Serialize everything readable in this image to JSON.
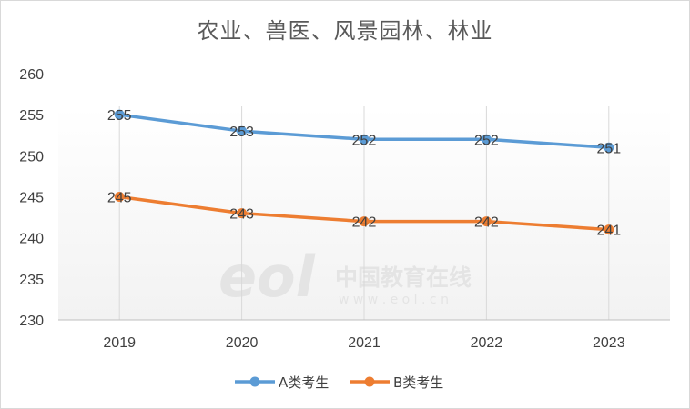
{
  "chart_data": {
    "type": "line",
    "title": "农业、兽医、风景园林、林业",
    "categories": [
      "2019",
      "2020",
      "2021",
      "2022",
      "2023"
    ],
    "series": [
      {
        "name": "A类考生",
        "values": [
          255,
          253,
          252,
          252,
          251
        ],
        "color": "#5b9bd5"
      },
      {
        "name": "B类考生",
        "values": [
          245,
          243,
          242,
          242,
          241
        ],
        "color": "#ed7d31"
      }
    ],
    "ylim": [
      230,
      260
    ],
    "yticks": [
      230,
      235,
      240,
      245,
      250,
      255,
      260
    ],
    "xlabel": "",
    "ylabel": "",
    "legend": "bottom",
    "data_labels": true
  },
  "watermark": {
    "logo": "eol",
    "cn_text": "中国教育在线",
    "url_text": "w w w . e o l . c n"
  }
}
